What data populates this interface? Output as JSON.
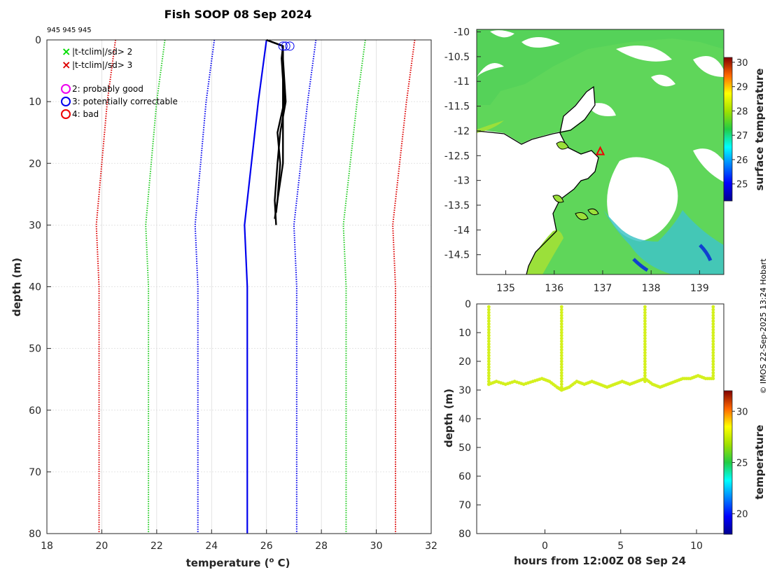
{
  "header": {
    "title": "Fish SOOP 08 Sep 2024",
    "profile_ids": "945 945 945"
  },
  "credit": "© IMOS 22-Sep-2025 13:24 Hobart",
  "chart_data": [
    {
      "type": "line",
      "name": "profile",
      "xlabel": "temperature (",
      "xlabel_sup": "o",
      "xlabel_end": " C)",
      "ylabel": "depth (m)",
      "xlim": [
        18,
        32
      ],
      "ylim": [
        0,
        80
      ],
      "xticks": [
        18,
        20,
        22,
        24,
        26,
        28,
        30,
        32
      ],
      "yticks": [
        0,
        10,
        20,
        30,
        40,
        50,
        60,
        70,
        80
      ],
      "legend": {
        "markers": [
          {
            "label": "|t-tclim|/sd> 2",
            "color": "#00dd00",
            "symbol": "x"
          },
          {
            "label": "|t-tclim|/sd> 3",
            "color": "#dd0000",
            "symbol": "x"
          }
        ],
        "flags": [
          {
            "label": "2: probably good",
            "color": "#ee00ee"
          },
          {
            "label": "3: potentially correctable",
            "color": "#0000ee"
          },
          {
            "label": "4: bad",
            "color": "#ee0000"
          }
        ]
      },
      "series": [
        {
          "name": "climatology mean",
          "color": "#0000ee",
          "style": "solid",
          "depth": [
            0,
            10,
            30,
            40,
            80
          ],
          "temp": [
            26.0,
            25.7,
            25.2,
            25.3,
            25.3
          ]
        },
        {
          "name": "mean-2sd",
          "color": "#0000ee",
          "style": "dotted",
          "depth": [
            0,
            10,
            30,
            40,
            80
          ],
          "temp": [
            24.1,
            23.8,
            23.4,
            23.5,
            23.5
          ]
        },
        {
          "name": "mean+2sd",
          "color": "#0000ee",
          "style": "dotted",
          "depth": [
            0,
            10,
            30,
            40,
            80
          ],
          "temp": [
            27.8,
            27.5,
            27.0,
            27.1,
            27.1
          ]
        },
        {
          "name": "mean-4sd",
          "color": "#22cc22",
          "style": "dotted",
          "depth": [
            0,
            10,
            30,
            40,
            80
          ],
          "temp": [
            22.3,
            22.0,
            21.6,
            21.7,
            21.7
          ]
        },
        {
          "name": "mean+4sd",
          "color": "#22cc22",
          "style": "dotted",
          "depth": [
            0,
            10,
            30,
            40,
            80
          ],
          "temp": [
            29.6,
            29.3,
            28.8,
            28.9,
            28.9
          ]
        },
        {
          "name": "mean-6sd",
          "color": "#dd0000",
          "style": "dotted",
          "depth": [
            0,
            10,
            30,
            40,
            80
          ],
          "temp": [
            20.5,
            20.2,
            19.8,
            19.9,
            19.9
          ]
        },
        {
          "name": "mean+6sd",
          "color": "#dd0000",
          "style": "dotted",
          "depth": [
            0,
            10,
            30,
            40,
            80
          ],
          "temp": [
            31.4,
            31.1,
            30.6,
            30.7,
            30.7
          ]
        },
        {
          "name": "cast 1",
          "color": "#000000",
          "style": "solid",
          "depth": [
            0,
            1,
            3,
            10,
            15,
            20,
            26,
            30
          ],
          "temp": [
            26.0,
            26.6,
            26.6,
            26.7,
            26.5,
            26.4,
            26.3,
            26.35
          ]
        },
        {
          "name": "cast 2",
          "color": "#000000",
          "style": "solid",
          "depth": [
            0,
            1,
            3,
            10,
            15,
            20,
            26,
            29
          ],
          "temp": [
            26.0,
            26.6,
            26.55,
            26.65,
            26.4,
            26.5,
            26.4,
            26.3
          ]
        },
        {
          "name": "cast 3",
          "color": "#000000",
          "style": "solid",
          "depth": [
            0,
            1,
            3,
            10,
            15,
            20,
            26,
            28
          ],
          "temp": [
            26.0,
            26.6,
            26.6,
            26.6,
            26.6,
            26.6,
            26.4,
            26.35
          ]
        }
      ],
      "flag_markers": [
        {
          "temp": 26.6,
          "depth": 1,
          "flag": 3
        },
        {
          "temp": 26.7,
          "depth": 1,
          "flag": 3
        },
        {
          "temp": 26.85,
          "depth": 1,
          "flag": 3
        }
      ]
    },
    {
      "type": "heatmap",
      "name": "map",
      "xticks": [
        135,
        136,
        137,
        138,
        139
      ],
      "yticks": [
        "-10",
        "-10.5",
        "-11",
        "-11.5",
        "-12",
        "-12.5",
        "-13",
        "-13.5",
        "-14",
        "-14.5"
      ],
      "xlim": [
        134.4,
        139.5
      ],
      "ylim": [
        -14.9,
        -9.95
      ],
      "colorbar": {
        "label": "surface temperature",
        "ticks": [
          25,
          26,
          27,
          28,
          29,
          30
        ],
        "range": [
          24.3,
          30.2
        ]
      },
      "track": {
        "lon": 136.95,
        "lat": -12.42,
        "marker": "triangle",
        "color": "#ee0000"
      }
    },
    {
      "type": "scatter",
      "name": "section",
      "xlabel": "hours from 12:00Z 08 Sep 24",
      "ylabel": "depth (m)",
      "xticks": [
        0,
        5,
        10
      ],
      "yticks": [
        0,
        10,
        20,
        30,
        40,
        50,
        60,
        70,
        80
      ],
      "xlim": [
        -4.5,
        11.8
      ],
      "ylim": [
        0,
        80
      ],
      "casts_hours": [
        -3.7,
        1.1,
        6.6,
        11.1
      ],
      "cast_bottom_depth": [
        28,
        30,
        27,
        26
      ],
      "bottom_trace": {
        "hours": [
          -3.7,
          -3.2,
          -2.6,
          -2.0,
          -1.4,
          -0.8,
          -0.2,
          0.3,
          0.8,
          1.1,
          1.6,
          2.1,
          2.6,
          3.1,
          3.6,
          4.1,
          4.6,
          5.1,
          5.6,
          6.1,
          6.6,
          7.1,
          7.6,
          8.1,
          8.6,
          9.1,
          9.6,
          10.1,
          10.6,
          11.1
        ],
        "depth": [
          28,
          27,
          28,
          27,
          28,
          27,
          26,
          27,
          29,
          30,
          29,
          27,
          28,
          27,
          28,
          29,
          28,
          27,
          28,
          27,
          26,
          28,
          29,
          28,
          27,
          26,
          26,
          25,
          26,
          26
        ]
      },
      "point_color": "#d4f01e",
      "colorbar": {
        "label": "temperature",
        "ticks": [
          20,
          25,
          30
        ],
        "range": [
          18,
          32
        ]
      }
    }
  ]
}
